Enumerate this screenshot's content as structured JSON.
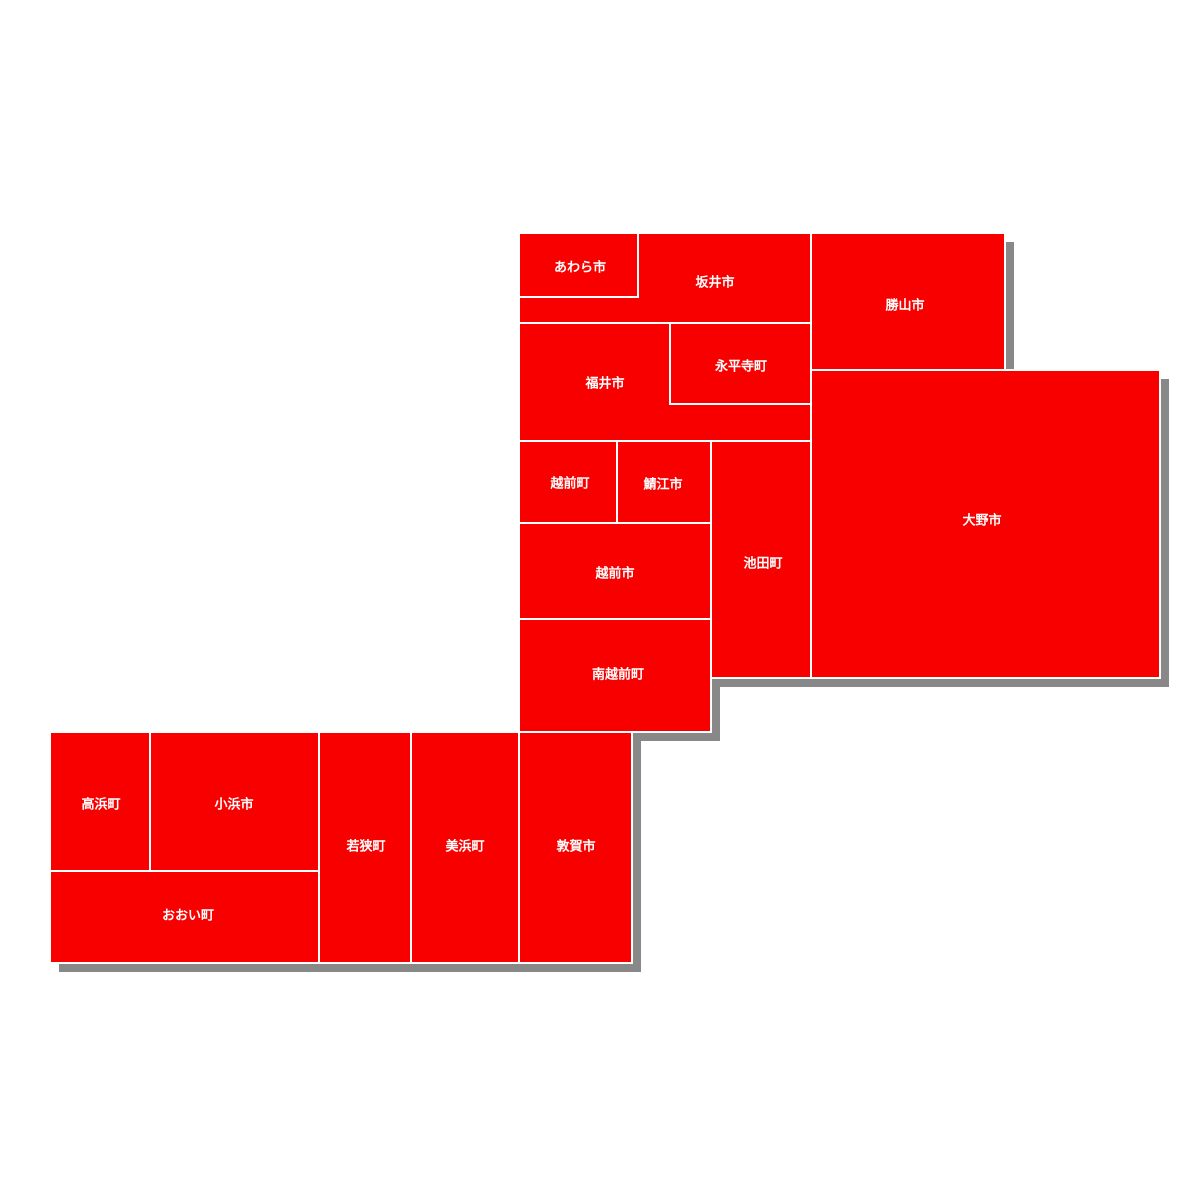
{
  "regions": [
    "坂井市",
    "あわら市",
    "勝山市",
    "福井市",
    "永平寺町",
    "大野市",
    "越前町",
    "鯖江市",
    "池田町",
    "越前市",
    "南越前町",
    "高浜町",
    "小浜市",
    "おおい町",
    "若狭町",
    "美浜町",
    "敦賀市"
  ]
}
